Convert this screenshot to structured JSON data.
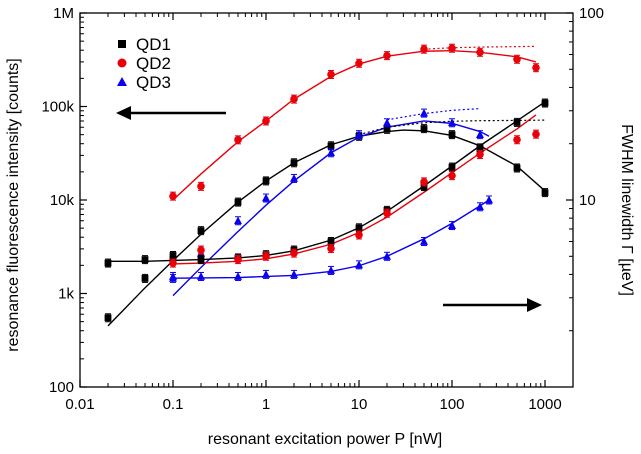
{
  "chart_data": {
    "type": "scatter",
    "xlabel": "resonant excitation power P [nW]",
    "ylabel_left": "resonance fluorescence intensity [counts]",
    "ylabel_right": "FWHM linewidth Γ [µeV]",
    "x_scale": "log",
    "y_left_scale": "log",
    "y_right_scale": "log",
    "xlim": [
      0.01,
      2000
    ],
    "ylim_left": [
      100,
      1000000
    ],
    "ylim_right": [
      1,
      100
    ],
    "x_ticks": [
      {
        "value": 0.01,
        "label": "0.01"
      },
      {
        "value": 0.1,
        "label": "0.1"
      },
      {
        "value": 1,
        "label": "1"
      },
      {
        "value": 10,
        "label": "10"
      },
      {
        "value": 100,
        "label": "100"
      },
      {
        "value": 1000,
        "label": "1000"
      }
    ],
    "y_left_ticks": [
      {
        "value": 100,
        "label": "100"
      },
      {
        "value": 1000,
        "label": "1k"
      },
      {
        "value": 10000,
        "label": "10k"
      },
      {
        "value": 100000,
        "label": "100k"
      },
      {
        "value": 1000000,
        "label": "1M"
      }
    ],
    "y_right_ticks": [
      {
        "value": 10,
        "label": "10"
      },
      {
        "value": 100,
        "label": "100"
      }
    ],
    "legend": [
      {
        "name": "QD1",
        "color": "#000000",
        "marker": "square"
      },
      {
        "name": "QD2",
        "color": "#e8000b",
        "marker": "circle"
      },
      {
        "name": "QD3",
        "color": "#0a00f0",
        "marker": "triangle"
      }
    ],
    "series": [
      {
        "name": "QD1",
        "quantity": "intensity",
        "axis": "left",
        "color": "#000000",
        "marker": "square",
        "x": [
          0.02,
          0.05,
          0.1,
          0.2,
          0.5,
          1,
          2,
          5,
          10,
          20,
          50,
          100,
          200,
          500,
          1000
        ],
        "y": [
          550,
          1450,
          2550,
          4700,
          9500,
          16000,
          25000,
          38000,
          48000,
          57000,
          58000,
          50000,
          35000,
          22000,
          12000
        ],
        "fit_x": [
          0.02,
          0.05,
          0.1,
          0.2,
          0.5,
          1,
          2,
          5,
          10,
          20,
          30,
          50,
          100,
          200,
          500,
          1000
        ],
        "fit_y": [
          450,
          1150,
          2250,
          4300,
          9500,
          16000,
          25000,
          39000,
          48000,
          54000,
          56000,
          55000,
          49000,
          38000,
          23000,
          12500
        ],
        "saturation_x": [
          10,
          20,
          50,
          100,
          200,
          500,
          1000
        ],
        "saturation_y": [
          50000,
          60000,
          67000,
          69500,
          70500,
          71000,
          71500
        ]
      },
      {
        "name": "QD2",
        "quantity": "intensity",
        "axis": "left",
        "color": "#e8000b",
        "marker": "circle",
        "x": [
          0.1,
          0.2,
          0.5,
          1,
          2,
          5,
          10,
          20,
          50,
          100,
          200,
          500,
          800
        ],
        "y": [
          11000,
          14000,
          44000,
          70000,
          120000,
          220000,
          290000,
          350000,
          410000,
          420000,
          380000,
          320000,
          260000
        ],
        "fit_x": [
          0.1,
          0.2,
          0.5,
          1,
          2,
          5,
          10,
          20,
          50,
          100,
          200,
          500,
          800
        ],
        "fit_y": [
          10000,
          19000,
          42000,
          70000,
          120000,
          210000,
          285000,
          345000,
          390000,
          395000,
          380000,
          340000,
          300000
        ],
        "saturation_x": [
          50,
          100,
          200,
          500,
          800
        ],
        "saturation_y": [
          410000,
          425000,
          432000,
          437000,
          440000
        ]
      },
      {
        "name": "QD3",
        "quantity": "intensity",
        "axis": "left",
        "color": "#0a00f0",
        "marker": "triangle",
        "x": [
          0.1,
          0.2,
          0.5,
          1,
          2,
          5,
          10,
          20,
          50,
          100,
          200
        ],
        "y": [
          1450,
          2700,
          6000,
          10500,
          17000,
          32000,
          50000,
          67000,
          85000,
          67000,
          50000
        ],
        "fit_x": [
          0.1,
          0.2,
          0.5,
          1,
          2,
          5,
          10,
          20,
          50,
          100,
          200,
          250
        ],
        "fit_y": [
          950,
          1900,
          4600,
          8800,
          16000,
          32000,
          47000,
          60000,
          70000,
          66000,
          54000,
          48000
        ],
        "saturation_x": [
          20,
          50,
          100,
          200
        ],
        "saturation_y": [
          72000,
          84000,
          91000,
          95000
        ]
      },
      {
        "name": "QD1",
        "quantity": "linewidth",
        "axis": "right",
        "color": "#000000",
        "marker": "square",
        "x": [
          0.02,
          0.05,
          0.1,
          0.2,
          0.5,
          1,
          2,
          5,
          10,
          20,
          50,
          100,
          200,
          500,
          1000
        ],
        "y": [
          4.6,
          4.8,
          4.8,
          4.8,
          4.9,
          5.1,
          5.4,
          6.0,
          7.1,
          8.8,
          11.8,
          15.0,
          19.0,
          26.0,
          33.0
        ],
        "fit_x": [
          0.02,
          0.05,
          0.1,
          0.2,
          0.5,
          1,
          2,
          5,
          10,
          20,
          50,
          100,
          200,
          500,
          1000
        ],
        "fit_y": [
          4.7,
          4.7,
          4.75,
          4.8,
          4.9,
          5.05,
          5.35,
          6.1,
          7.1,
          8.7,
          11.9,
          15.2,
          19.5,
          26.5,
          33.5
        ]
      },
      {
        "name": "QD2",
        "quantity": "linewidth",
        "axis": "right",
        "color": "#e8000b",
        "marker": "circle",
        "x": [
          0.1,
          0.2,
          0.5,
          1,
          2,
          5,
          10,
          20,
          50,
          100,
          200,
          500,
          800
        ],
        "y": [
          4.6,
          5.4,
          4.8,
          5.0,
          5.2,
          5.5,
          6.5,
          8.5,
          12.5,
          13.5,
          17.5,
          21.0,
          22.5
        ],
        "fit_x": [
          0.1,
          0.2,
          0.5,
          1,
          2,
          5,
          10,
          20,
          50,
          100,
          200,
          500,
          800
        ],
        "fit_y": [
          4.55,
          4.6,
          4.7,
          4.85,
          5.15,
          5.8,
          6.7,
          8.1,
          11.0,
          14.0,
          17.8,
          24.0,
          28.5
        ]
      },
      {
        "name": "QD3",
        "quantity": "linewidth",
        "axis": "right",
        "color": "#0a00f0",
        "marker": "triangle",
        "x": [
          0.1,
          0.2,
          0.5,
          1,
          2,
          5,
          10,
          20,
          50,
          100,
          200,
          250
        ],
        "y": [
          3.9,
          3.9,
          3.9,
          4.0,
          4.0,
          4.2,
          4.5,
          5.0,
          6.0,
          7.3,
          9.2,
          10.0
        ],
        "fit_x": [
          0.1,
          0.2,
          0.5,
          1,
          2,
          5,
          10,
          20,
          50,
          100,
          200,
          250
        ],
        "fit_y": [
          3.82,
          3.83,
          3.85,
          3.9,
          3.95,
          4.15,
          4.45,
          5.0,
          6.2,
          7.5,
          9.3,
          10.0
        ]
      }
    ],
    "annotations": [
      {
        "type": "arrow",
        "direction": "left",
        "meaning": "intensity data read on left axis"
      },
      {
        "type": "arrow",
        "direction": "right",
        "meaning": "linewidth data read on right axis"
      }
    ],
    "grid": false,
    "legend_position": "top-left"
  }
}
